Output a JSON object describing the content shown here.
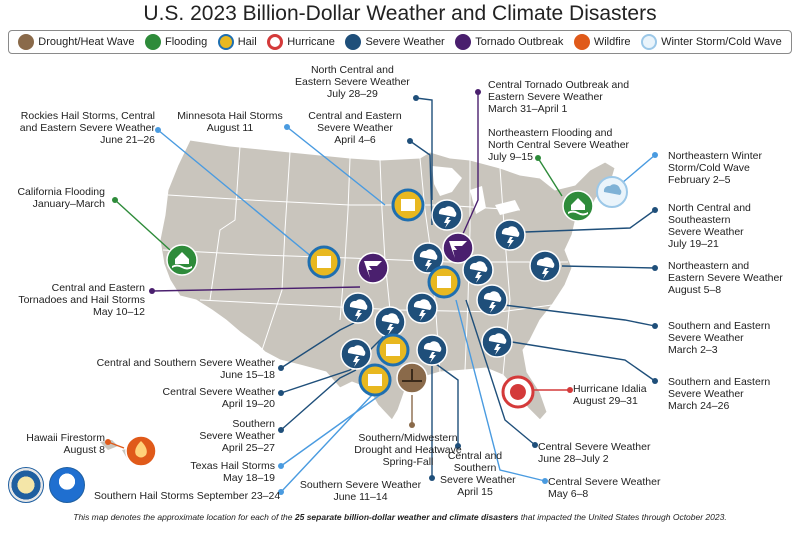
{
  "title": "U.S. 2023 Billion-Dollar Weather and Climate Disasters",
  "legend": [
    {
      "label": "Drought/Heat Wave",
      "icon": "drought-icon",
      "color": "#8a6a4a"
    },
    {
      "label": "Flooding",
      "icon": "flooding-icon",
      "color": "#2e8b3a"
    },
    {
      "label": "Hail",
      "icon": "hail-icon",
      "color": "#e8b820"
    },
    {
      "label": "Hurricane",
      "icon": "hurricane-icon",
      "color": "#d43a3a"
    },
    {
      "label": "Severe Weather",
      "icon": "severe-weather-icon",
      "color": "#1f4f7a"
    },
    {
      "label": "Tornado Outbreak",
      "icon": "tornado-icon",
      "color": "#4a1f6e"
    },
    {
      "label": "Wildfire",
      "icon": "wildfire-icon",
      "color": "#e05a1a"
    },
    {
      "label": "Winter Storm/Cold Wave",
      "icon": "winter-storm-icon",
      "color": "#9cc8e8"
    }
  ],
  "events": [
    {
      "name": "North Central and",
      "name2": "Eastern Severe Weather",
      "date": "July 28–29"
    },
    {
      "name": "Central Tornado Outbreak and",
      "name2": "Eastern Severe Weather",
      "date": "March 31–April 1"
    },
    {
      "name": "Rockies Hail Storms, Central",
      "name2": "and Eastern Severe Weather",
      "date": "June 21–26"
    },
    {
      "name": "Minnesota Hail Storms",
      "date": "August 11"
    },
    {
      "name": "Central and Eastern",
      "name2": "Severe Weather",
      "date": "April 4–6"
    },
    {
      "name": "Northeastern Flooding and",
      "name2": "North Central Severe Weather",
      "date": "July 9–15"
    },
    {
      "name": "Northeastern Winter",
      "name2": "Storm/Cold Wave",
      "date": "February 2–5"
    },
    {
      "name": "California Flooding",
      "date": "January–March"
    },
    {
      "name": "North Central and",
      "name2": "Southeastern",
      "name3": "Severe Weather",
      "date": "July 19–21"
    },
    {
      "name": "Northeastern and",
      "name2": "Eastern Severe Weather",
      "date": "August 5–8"
    },
    {
      "name": "Central and Eastern",
      "name2": "Tornadoes and Hail Storms",
      "date": "May 10–12"
    },
    {
      "name": "Southern and Eastern",
      "name2": "Severe Weather",
      "date": "March 2–3"
    },
    {
      "name": "Central and Southern Severe Weather",
      "date": "June 15–18"
    },
    {
      "name": "Southern and Eastern",
      "name2": "Severe Weather",
      "date": "March 24–26"
    },
    {
      "name": "Central Severe Weather",
      "date": "April 19–20"
    },
    {
      "name": "Hurricane Idalia",
      "date": "August 29–31"
    },
    {
      "name": "Southern",
      "name2": "Severe Weather",
      "date": "April 25–27"
    },
    {
      "name": "Southern/Midwestern",
      "name2": "Drought and Heatwave",
      "date": "Spring-Fall"
    },
    {
      "name": "Central and",
      "name2": "Southern",
      "name3": "Severe Weather",
      "date": "April 15"
    },
    {
      "name": "Central Severe Weather",
      "date": "June 28–July 2"
    },
    {
      "name": "Hawaii Firestorm",
      "date": "August 8"
    },
    {
      "name": "Texas Hail Storms",
      "date": "May 18–19"
    },
    {
      "name": "Central Severe Weather",
      "date": "May 6–8"
    },
    {
      "name": "Southern Severe Weather",
      "date": "June 11–14"
    },
    {
      "name": "Southern Hail Storms",
      "date": "September 23–24"
    }
  ],
  "footnote": {
    "before": "This map denotes the approximate location for each of the ",
    "bold": "25 separate billion-dollar weather and climate disasters",
    "after": " that impacted the United States through October 2023."
  },
  "seals": [
    "department-of-commerce-seal",
    "noaa-logo"
  ]
}
